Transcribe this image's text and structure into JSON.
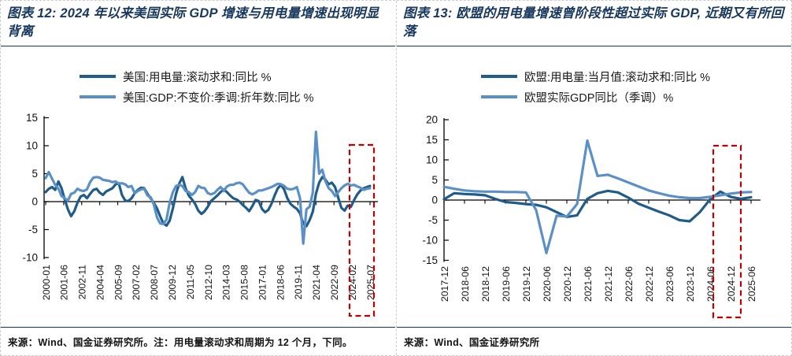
{
  "accent_colors": {
    "rule": "#17365D",
    "highlight": "#C00000"
  },
  "chart_data": [
    {
      "type": "line",
      "figure_label": "图表 12: 2024 年以来美国实际 GDP 增速与用电量增速出现明显背离",
      "source_note": "来源：Wind、国金证券研究所。注：用电量滚动求和周期为 12 个月，下同。",
      "yticks": [
        15,
        10,
        5,
        0,
        -5,
        -10
      ],
      "ylim": [
        -10,
        15
      ],
      "grid": "off",
      "legend_position": "top",
      "xlabels": [
        "2000-01",
        "2001-06",
        "2002-11",
        "2004-04",
        "2005-09",
        "2007-02",
        "2008-07",
        "2009-12",
        "2011-05",
        "2012-10",
        "2014-03",
        "2015-08",
        "2017-01",
        "2018-06",
        "2019-11",
        "2021-04",
        "2022-09",
        "2024-02",
        "2025-07"
      ],
      "highlight": {
        "from_label": "2024-02",
        "to_label": "2025-07",
        "color": "#C00000"
      },
      "series": [
        {
          "label": "美国:用电量:滚动求和:同比 %",
          "color": "#1F5C8A",
          "values": [
            1.7,
            2.3,
            2.6,
            2.1,
            3.6,
            2.4,
            0.4,
            -1.4,
            -2.6,
            -1.7,
            -0.2,
            0.9,
            1.2,
            0.6,
            1.4,
            2.1,
            2.3,
            1.6,
            1.2,
            1.8,
            2.1,
            2.4,
            3.1,
            3.3,
            1.2,
            0.2,
            0.1,
            0.6,
            1.5,
            2.1,
            2.5,
            2.4,
            1.4,
            0.6,
            -0.2,
            -1.2,
            -2.6,
            -3.9,
            -4.3,
            -3.4,
            -1.2,
            1.4,
            3.2,
            4.4,
            2.4,
            1.1,
            0.4,
            -0.4,
            -1.6,
            -2.2,
            -1.7,
            -0.9,
            0.1,
            0.6,
            1.1,
            1.7,
            2.2,
            1.7,
            1.1,
            0.6,
            0.4,
            0.0,
            -0.6,
            -1.1,
            -1.7,
            -0.8,
            0.3,
            0.1,
            -1.3,
            -1.9,
            -1.5,
            -0.4,
            1.1,
            2.4,
            3.0,
            2.2,
            0.6,
            -0.4,
            -0.9,
            -1.3,
            -2.1,
            -3.9,
            -4.4,
            -3.3,
            -1.8,
            1.4,
            3.4,
            4.4,
            3.9,
            3.1,
            3.4,
            2.6,
            0.7,
            -1.1,
            -1.6,
            -0.7,
            -0.9,
            0.3,
            1.3,
            2.0,
            2.4,
            2.6,
            2.8
          ]
        },
        {
          "label": "美国:GDP:不变价:季调:折年数:同比 %",
          "color": "#5B90C7",
          "values": [
            4.2,
            5.3,
            4.1,
            3.0,
            2.3,
            1.0,
            0.6,
            0.2,
            1.4,
            1.6,
            2.3,
            2.0,
            1.9,
            2.2,
            3.5,
            4.3,
            4.4,
            4.3,
            3.9,
            3.8,
            3.7,
            3.5,
            3.6,
            3.2,
            3.3,
            3.1,
            2.6,
            2.8,
            1.5,
            1.9,
            2.2,
            2.3,
            1.1,
            0.8,
            -0.5,
            -2.8,
            -3.9,
            -4.0,
            -3.2,
            -0.2,
            1.7,
            2.8,
            3.0,
            2.8,
            1.9,
            1.7,
            1.2,
            1.7,
            2.8,
            2.5,
            2.4,
            1.5,
            1.3,
            1.5,
            2.1,
            2.6,
            1.9,
            2.7,
            3.0,
            3.0,
            3.3,
            3.4,
            3.1,
            2.3,
            1.6,
            1.3,
            1.6,
            2.0,
            2.0,
            2.2,
            2.4,
            2.6,
            2.9,
            3.2,
            3.1,
            2.8,
            2.3,
            2.2,
            2.3,
            2.6,
            0.6,
            -7.5,
            -1.4,
            -0.9,
            1.6,
            12.5,
            5.0,
            5.7,
            3.6,
            2.4,
            1.9,
            1.0,
            1.7,
            2.4,
            2.9,
            3.2,
            2.9,
            3.0,
            2.7,
            2.5,
            2.1,
            2.3,
            2.4
          ]
        }
      ]
    },
    {
      "type": "line",
      "figure_label": "图表 13: 欧盟的用电量增速曾阶段性超过实际 GDP, 近期又有所回落",
      "source_note": "来源：Wind、国金证券研究所",
      "yticks": [
        20,
        15,
        10,
        5,
        0,
        -5,
        -10,
        -15
      ],
      "ylim": [
        -15,
        20
      ],
      "grid": "off",
      "legend_position": "top",
      "xlabels": [
        "2017-12",
        "2018-06",
        "2018-12",
        "2019-06",
        "2019-12",
        "2020-06",
        "2020-12",
        "2021-06",
        "2021-12",
        "2022-06",
        "2022-12",
        "2023-06",
        "2023-12",
        "2024-06",
        "2024-12",
        "2025-06"
      ],
      "highlight": {
        "from_label": "2024-06",
        "to_label": "2024-12",
        "color": "#C00000"
      },
      "series": [
        {
          "label": "欧盟:用电量:当月值:滚动求和:同比 %",
          "color": "#1F5C8A",
          "values": [
            0.2,
            1.7,
            1.5,
            1.4,
            1.2,
            0.3,
            -0.5,
            -0.7,
            -1.0,
            -1.2,
            -1.8,
            -3.0,
            -4.2,
            -3.8,
            0.3,
            1.7,
            2.3,
            1.9,
            0.6,
            -0.9,
            -1.9,
            -2.9,
            -3.8,
            -5.0,
            -5.3,
            -3.0,
            0.2,
            2.1,
            0.8,
            0.3,
            0.7
          ]
        },
        {
          "label": "欧盟实际GDP同比（季调）%",
          "color": "#5B90C7",
          "values": [
            3.3,
            2.8,
            2.4,
            2.2,
            2.1,
            2.1,
            2.0,
            2.0,
            1.9,
            -2.5,
            -13.2,
            -3.9,
            -4.1,
            -1.0,
            14.8,
            6.0,
            6.3,
            5.4,
            4.4,
            3.4,
            2.4,
            1.7,
            1.1,
            0.7,
            0.5,
            0.5,
            0.8,
            1.2,
            1.6,
            1.9,
            2.0
          ]
        }
      ]
    }
  ]
}
